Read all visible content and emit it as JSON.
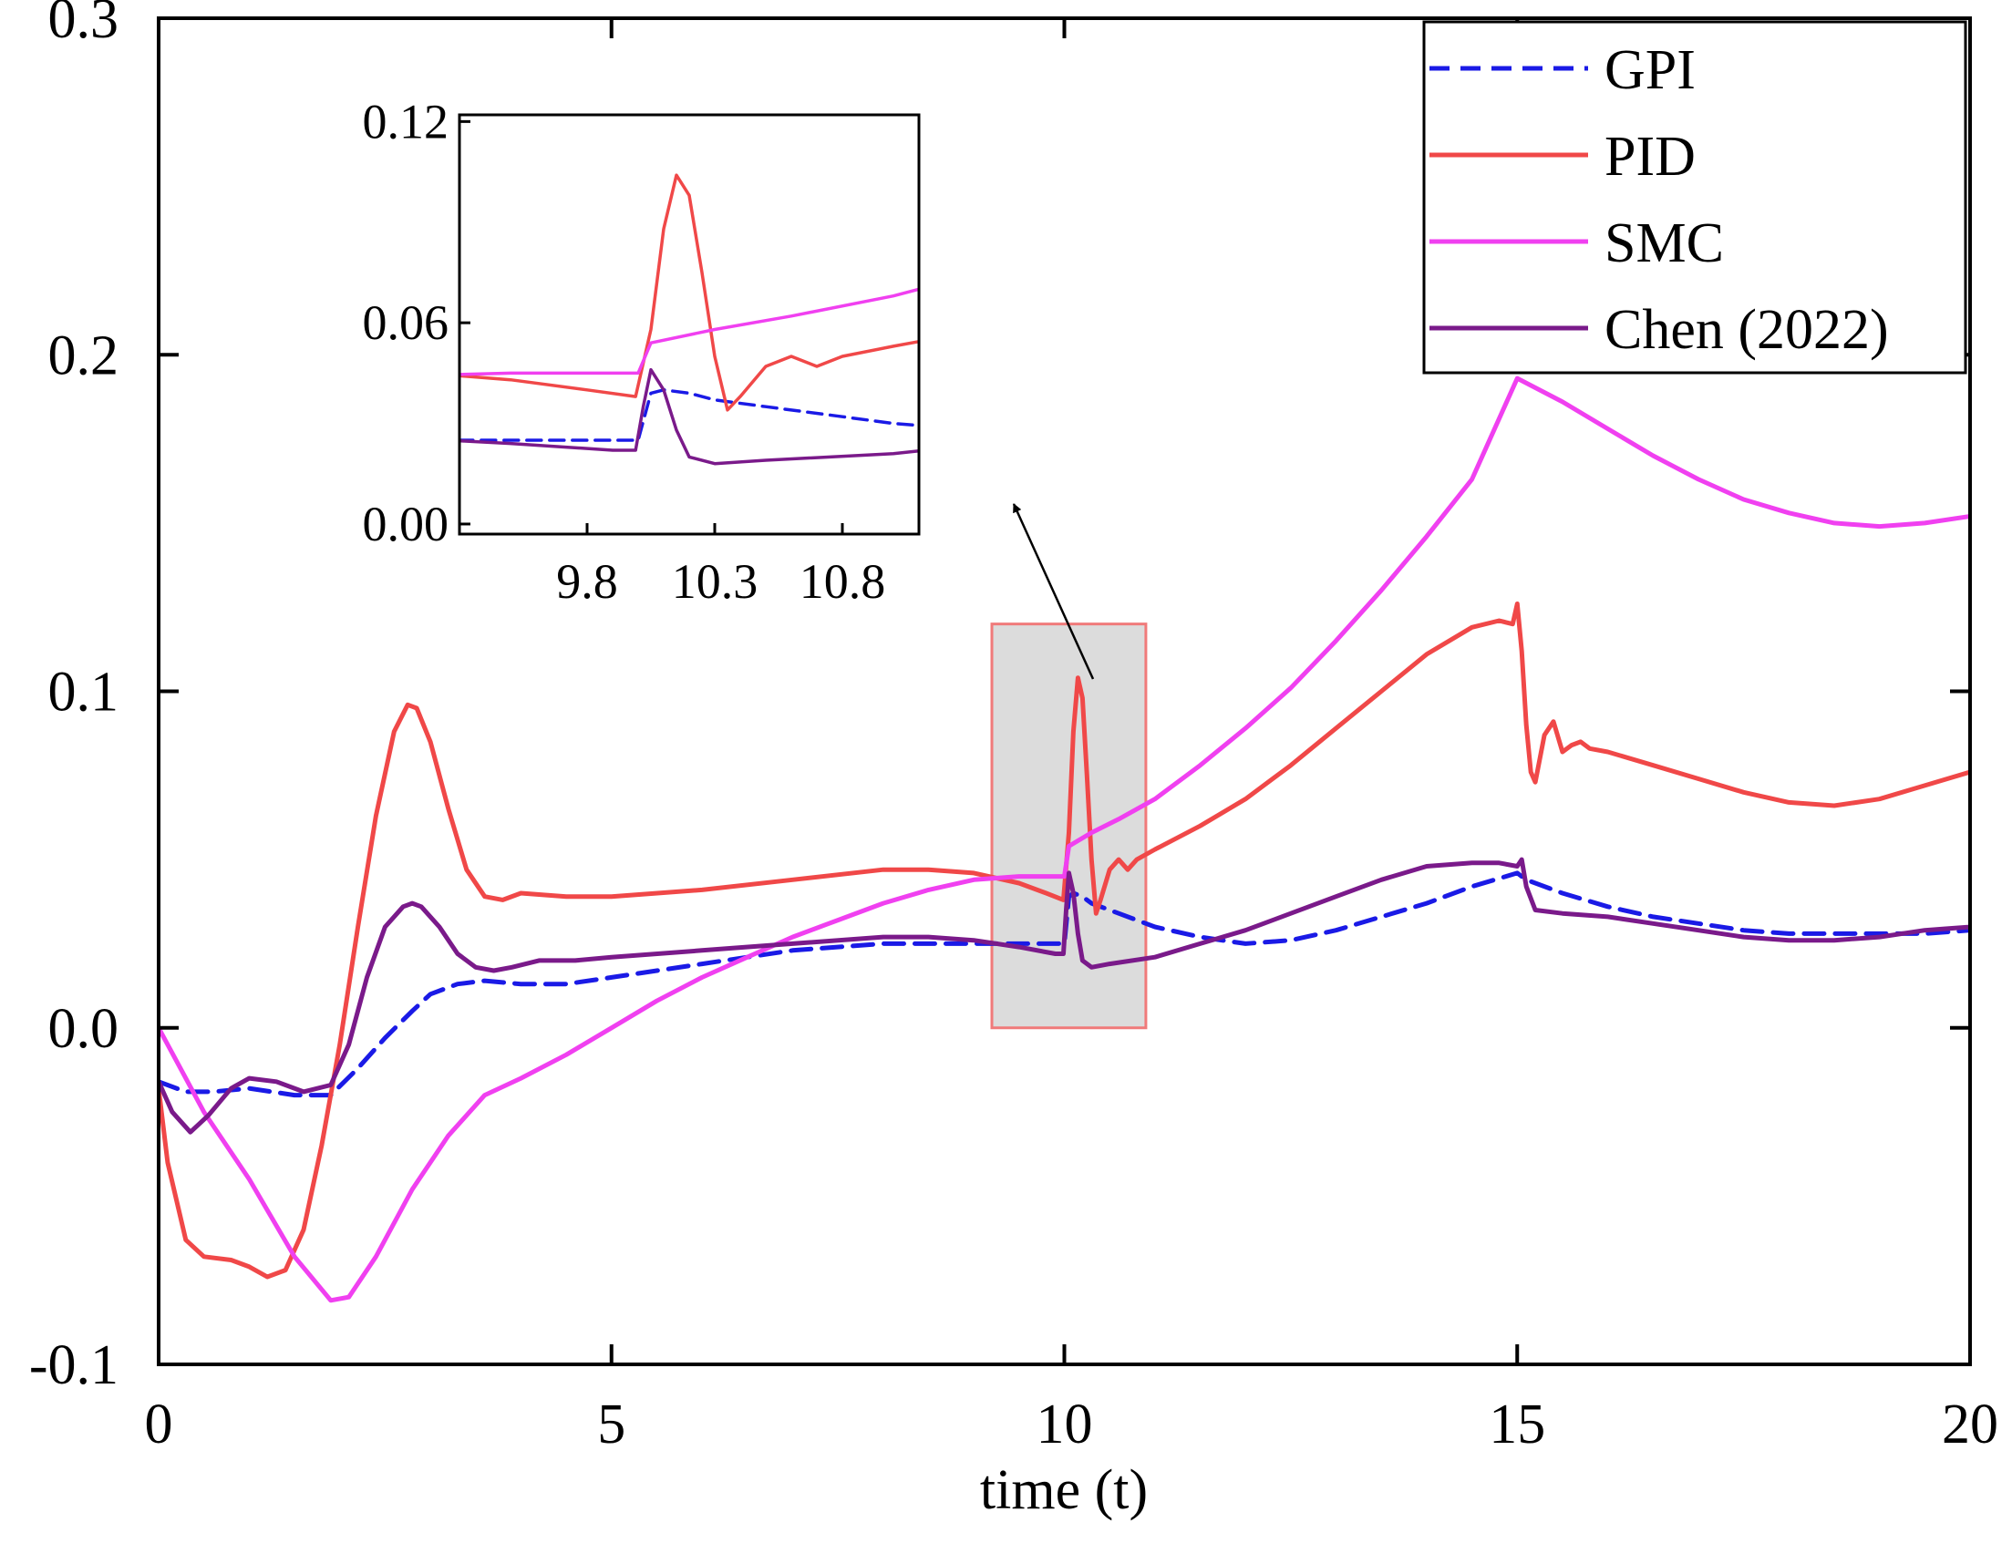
{
  "chart_data": {
    "type": "line",
    "title": "",
    "xlabel": "time (t)",
    "ylabel": "",
    "xlim": [
      0,
      20
    ],
    "ylim": [
      -0.1,
      0.3
    ],
    "xticks": [
      0,
      5,
      10,
      15,
      20
    ],
    "xtick_labels": [
      "0",
      "5",
      "10",
      "15",
      "20"
    ],
    "yticks": [
      -0.1,
      0.0,
      0.1,
      0.2,
      0.3
    ],
    "ytick_labels": [
      "-0.1",
      "0.0",
      "0.1",
      "0.2",
      "0.3"
    ],
    "legend": {
      "position": "top-right",
      "entries": [
        "GPI",
        "PID",
        "SMC",
        "Chen (2022)"
      ]
    },
    "series": [
      {
        "name": "GPI",
        "color": "#1a1ae6",
        "dash": true,
        "x": [
          0,
          0.3,
          0.6,
          1.0,
          1.5,
          1.9,
          2.2,
          2.5,
          2.8,
          3.0,
          3.3,
          3.6,
          4.0,
          4.5,
          5,
          6,
          7,
          8,
          9,
          9.5,
          9.8,
          10.0,
          10.05,
          10.1,
          10.2,
          10.3,
          10.5,
          10.8,
          11,
          11.5,
          12,
          12.5,
          13,
          13.5,
          14,
          14.5,
          15,
          15.1,
          15.5,
          16,
          16.5,
          17,
          17.5,
          18,
          18.5,
          19,
          19.5,
          20
        ],
        "y": [
          -0.016,
          -0.019,
          -0.019,
          -0.018,
          -0.02,
          -0.02,
          -0.012,
          -0.003,
          0.005,
          0.01,
          0.013,
          0.014,
          0.013,
          0.013,
          0.015,
          0.019,
          0.023,
          0.025,
          0.025,
          0.025,
          0.025,
          0.025,
          0.039,
          0.04,
          0.039,
          0.037,
          0.035,
          0.032,
          0.03,
          0.027,
          0.025,
          0.026,
          0.029,
          0.033,
          0.037,
          0.042,
          0.046,
          0.044,
          0.04,
          0.036,
          0.033,
          0.031,
          0.029,
          0.028,
          0.028,
          0.028,
          0.028,
          0.029
        ]
      },
      {
        "name": "PID",
        "color": "#f04848",
        "dash": false,
        "x": [
          0,
          0.1,
          0.3,
          0.5,
          0.8,
          1.0,
          1.2,
          1.4,
          1.6,
          1.8,
          2.0,
          2.2,
          2.4,
          2.6,
          2.75,
          2.85,
          3.0,
          3.2,
          3.4,
          3.6,
          3.8,
          4.0,
          4.5,
          5,
          6,
          7,
          8,
          8.5,
          9,
          9.5,
          9.8,
          9.99,
          10.05,
          10.1,
          10.15,
          10.2,
          10.25,
          10.3,
          10.35,
          10.4,
          10.5,
          10.6,
          10.7,
          10.8,
          11,
          11.5,
          12,
          12.5,
          13,
          13.5,
          14,
          14.5,
          14.8,
          14.95,
          15.0,
          15.05,
          15.1,
          15.15,
          15.2,
          15.3,
          15.4,
          15.5,
          15.6,
          15.7,
          15.8,
          16,
          16.5,
          17,
          17.5,
          18,
          18.5,
          19,
          19.5,
          20
        ],
        "y": [
          -0.018,
          -0.04,
          -0.063,
          -0.068,
          -0.069,
          -0.071,
          -0.074,
          -0.072,
          -0.06,
          -0.035,
          -0.005,
          0.03,
          0.063,
          0.088,
          0.096,
          0.095,
          0.085,
          0.065,
          0.047,
          0.039,
          0.038,
          0.04,
          0.039,
          0.039,
          0.041,
          0.044,
          0.047,
          0.047,
          0.046,
          0.043,
          0.04,
          0.038,
          0.058,
          0.088,
          0.104,
          0.098,
          0.075,
          0.05,
          0.034,
          0.038,
          0.047,
          0.05,
          0.047,
          0.05,
          0.053,
          0.06,
          0.068,
          0.078,
          0.089,
          0.1,
          0.111,
          0.119,
          0.121,
          0.12,
          0.126,
          0.112,
          0.09,
          0.076,
          0.073,
          0.087,
          0.091,
          0.082,
          0.084,
          0.085,
          0.083,
          0.082,
          0.078,
          0.074,
          0.07,
          0.067,
          0.066,
          0.068,
          0.072,
          0.076
        ]
      },
      {
        "name": "SMC",
        "color": "#f040f0",
        "dash": false,
        "x": [
          0,
          0.2,
          0.5,
          1.0,
          1.5,
          1.9,
          2.1,
          2.4,
          2.8,
          3.2,
          3.6,
          4.0,
          4.5,
          5,
          5.5,
          6,
          6.5,
          7,
          7.5,
          8,
          8.5,
          9,
          9.5,
          9.9,
          10.0,
          10.05,
          10.3,
          10.6,
          11,
          11.5,
          12,
          12.5,
          13,
          13.5,
          14,
          14.5,
          15,
          15.5,
          16,
          16.5,
          17,
          17.5,
          18,
          18.5,
          19,
          19.5,
          20
        ],
        "y": [
          0.0,
          -0.01,
          -0.025,
          -0.045,
          -0.068,
          -0.081,
          -0.08,
          -0.068,
          -0.048,
          -0.032,
          -0.02,
          -0.015,
          -0.008,
          0.0,
          0.008,
          0.015,
          0.021,
          0.027,
          0.032,
          0.037,
          0.041,
          0.044,
          0.045,
          0.045,
          0.045,
          0.054,
          0.058,
          0.062,
          0.068,
          0.078,
          0.089,
          0.101,
          0.115,
          0.13,
          0.146,
          0.163,
          0.193,
          0.186,
          0.178,
          0.17,
          0.163,
          0.157,
          0.153,
          0.15,
          0.149,
          0.15,
          0.152
        ]
      },
      {
        "name": "Chen (2022)",
        "color": "#7a1a8a",
        "dash": false,
        "x": [
          0,
          0.15,
          0.35,
          0.55,
          0.8,
          1.0,
          1.3,
          1.6,
          1.9,
          2.1,
          2.3,
          2.5,
          2.7,
          2.8,
          2.9,
          3.1,
          3.3,
          3.5,
          3.7,
          3.9,
          4.2,
          4.6,
          5,
          6,
          7,
          8,
          8.5,
          9,
          9.5,
          9.9,
          9.99,
          10.02,
          10.05,
          10.1,
          10.15,
          10.2,
          10.3,
          10.5,
          11,
          11.5,
          12,
          12.5,
          13,
          13.5,
          14,
          14.5,
          14.8,
          15.0,
          15.05,
          15.1,
          15.2,
          15.5,
          16,
          16.5,
          17,
          17.5,
          18,
          18.5,
          19,
          19.5,
          20
        ],
        "y": [
          -0.016,
          -0.025,
          -0.031,
          -0.026,
          -0.018,
          -0.015,
          -0.016,
          -0.019,
          -0.017,
          -0.005,
          0.015,
          0.03,
          0.036,
          0.037,
          0.036,
          0.03,
          0.022,
          0.018,
          0.017,
          0.018,
          0.02,
          0.02,
          0.021,
          0.023,
          0.025,
          0.027,
          0.027,
          0.026,
          0.024,
          0.022,
          0.022,
          0.035,
          0.046,
          0.04,
          0.028,
          0.02,
          0.018,
          0.019,
          0.021,
          0.025,
          0.029,
          0.034,
          0.039,
          0.044,
          0.048,
          0.049,
          0.049,
          0.048,
          0.05,
          0.042,
          0.035,
          0.034,
          0.033,
          0.031,
          0.029,
          0.027,
          0.026,
          0.026,
          0.027,
          0.029,
          0.03
        ]
      }
    ],
    "inset": {
      "xlim": [
        9.3,
        11.1
      ],
      "ylim": [
        -0.003,
        0.122
      ],
      "xticks": [
        9.8,
        10.3,
        10.8
      ],
      "xtick_labels": [
        "9.8",
        "10.3",
        "10.8"
      ],
      "yticks": [
        0.0,
        0.06,
        0.12
      ],
      "ytick_labels": [
        "0.00",
        "0.06",
        "0.12"
      ],
      "highlight_region": {
        "x": [
          9.2,
          10.9
        ],
        "y": [
          0.0,
          0.12
        ]
      }
    }
  }
}
